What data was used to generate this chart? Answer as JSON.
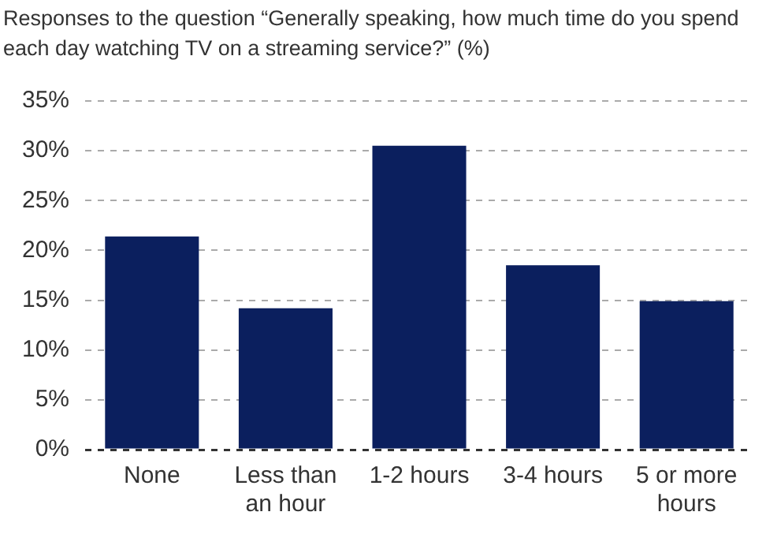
{
  "chart_data": {
    "type": "bar",
    "title": "Responses to the question “Generally speaking, how much time do you spend each day watching TV on a streaming service?” (%)",
    "categories": [
      "None",
      "Less than an hour",
      "1-2 hours",
      "3-4 hours",
      "5 or more hours"
    ],
    "values": [
      21.4,
      14.2,
      30.5,
      18.5,
      14.9
    ],
    "color": "#0b1f5e",
    "ylim": [
      0,
      35
    ],
    "yticks": [
      {
        "value": 0,
        "label": "0%"
      },
      {
        "value": 5,
        "label": "5%"
      },
      {
        "value": 10,
        "label": "10%"
      },
      {
        "value": 15,
        "label": "15%"
      },
      {
        "value": 20,
        "label": "20%"
      },
      {
        "value": 25,
        "label": "25%"
      },
      {
        "value": 30,
        "label": "30%"
      },
      {
        "value": 35,
        "label": "35%"
      }
    ],
    "grid": "y"
  }
}
